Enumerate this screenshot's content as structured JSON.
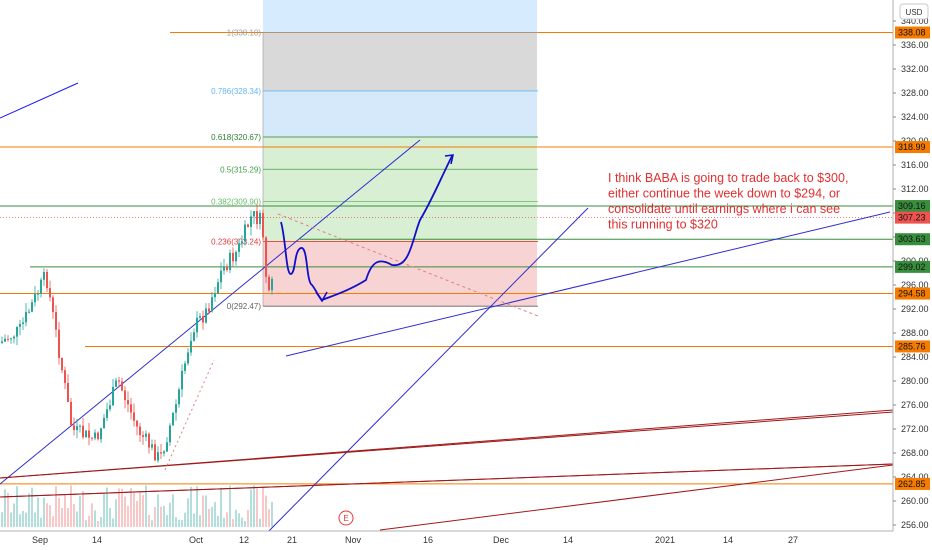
{
  "currency_button": "USD",
  "chart_data": {
    "type": "candlestick",
    "ylim": [
      256,
      342
    ],
    "y_ticks": [
      340,
      336,
      332,
      328,
      324,
      320,
      316,
      312,
      308,
      304,
      300,
      296,
      292,
      288,
      284,
      280,
      276,
      272,
      268,
      264,
      260,
      256
    ],
    "x_labels": [
      {
        "text": "Sep",
        "x": 40
      },
      {
        "text": "14",
        "x": 97
      },
      {
        "text": "Oct",
        "x": 196
      },
      {
        "text": "12",
        "x": 244
      },
      {
        "text": "21",
        "x": 292
      },
      {
        "text": "Nov",
        "x": 353
      },
      {
        "text": "16",
        "x": 428
      },
      {
        "text": "Dec",
        "x": 501
      },
      {
        "text": "14",
        "x": 568
      },
      {
        "text": "2021",
        "x": 665
      },
      {
        "text": "14",
        "x": 728
      },
      {
        "text": "27",
        "x": 793
      }
    ],
    "price_tags": [
      {
        "text": "338.08",
        "value": 338.08,
        "color": "#f57c00"
      },
      {
        "text": "318.99",
        "value": 318.99,
        "color": "#f57c00"
      },
      {
        "text": "309.16",
        "value": 309.16,
        "color": "#388e3c"
      },
      {
        "text": "307.23",
        "value": 307.23,
        "color": "#ef5350"
      },
      {
        "text": "303.63",
        "value": 303.63,
        "color": "#388e3c"
      },
      {
        "text": "299.02",
        "value": 299.02,
        "color": "#388e3c"
      },
      {
        "text": "294.58",
        "value": 294.58,
        "color": "#f57c00"
      },
      {
        "text": "285.76",
        "value": 285.76,
        "color": "#f57c00"
      },
      {
        "text": "262.85",
        "value": 262.85,
        "color": "#f57c00"
      }
    ],
    "fib_levels": [
      {
        "label": "1(338.10)",
        "value": 338.1,
        "color": "#9e9e9e"
      },
      {
        "label": "0.786(328.34)",
        "value": 328.34,
        "color": "#64b5f6"
      },
      {
        "label": "0.618(320.67)",
        "value": 320.67,
        "color": "#2e7d32"
      },
      {
        "label": "0.5(315.29)",
        "value": 315.29,
        "color": "#43a047"
      },
      {
        "label": "0.382(309.90)",
        "value": 309.9,
        "color": "#66bb6a"
      },
      {
        "label": "0.236(303.24)",
        "value": 303.24,
        "color": "#e53935"
      },
      {
        "label": "0(292.47)",
        "value": 292.47,
        "color": "#616161"
      }
    ],
    "horizontal_levels": [
      {
        "value": 338.08,
        "color": "#f57c00"
      },
      {
        "value": 318.99,
        "color": "#f57c00"
      },
      {
        "value": 309.16,
        "color": "#388e3c"
      },
      {
        "value": 303.63,
        "color": "#388e3c"
      },
      {
        "value": 299.02,
        "color": "#388e3c"
      },
      {
        "value": 294.58,
        "color": "#f57c00"
      },
      {
        "value": 285.76,
        "color": "#f57c00"
      },
      {
        "value": 262.85,
        "color": "#f57c00"
      }
    ],
    "annotation": [
      "I think BABA is going to trade back to $300,",
      "either continue the week down to $294, or",
      "consolidate until earnings where i can see",
      "this running to $320"
    ],
    "earnings_marker": "E"
  }
}
